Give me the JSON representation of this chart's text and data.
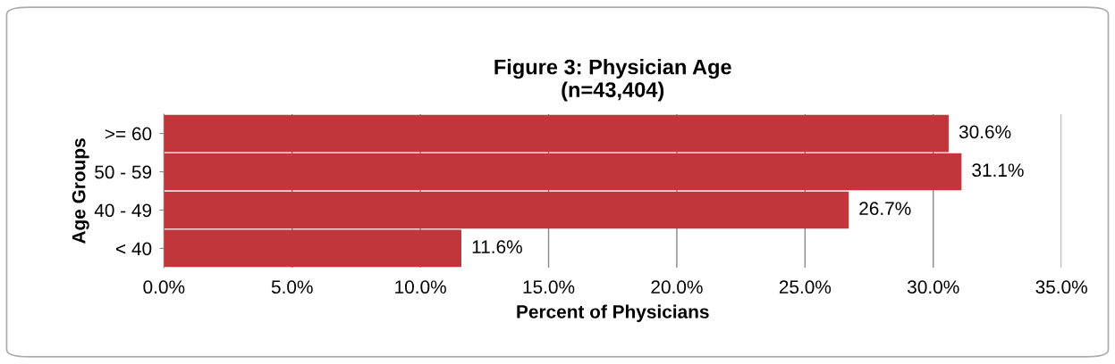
{
  "chart_data": {
    "type": "bar",
    "orientation": "horizontal",
    "title": "Figure 3: Physician Age\n(n=43,404)",
    "xlabel": "Percent of Physicians",
    "ylabel": "Age Groups",
    "categories": [
      ">= 60",
      "50 - 59",
      "40 - 49",
      "< 40"
    ],
    "values": [
      30.6,
      31.1,
      26.7,
      11.6
    ],
    "color": "#c0363a",
    "value_labels": [
      "30.6%",
      "31.1%",
      "26.7%",
      "11.6%"
    ],
    "xlim": [
      0,
      35
    ],
    "xticks": [
      {
        "value": 0,
        "label": "0.0%"
      },
      {
        "value": 5,
        "label": "5.0%"
      },
      {
        "value": 10,
        "label": "10.0%"
      },
      {
        "value": 15,
        "label": "15.0%"
      },
      {
        "value": 20,
        "label": "20.0%"
      },
      {
        "value": 25,
        "label": "25.0%"
      },
      {
        "value": 30,
        "label": "30.0%"
      },
      {
        "value": 35,
        "label": "35.0%"
      }
    ],
    "grid": "x",
    "legend": false
  }
}
